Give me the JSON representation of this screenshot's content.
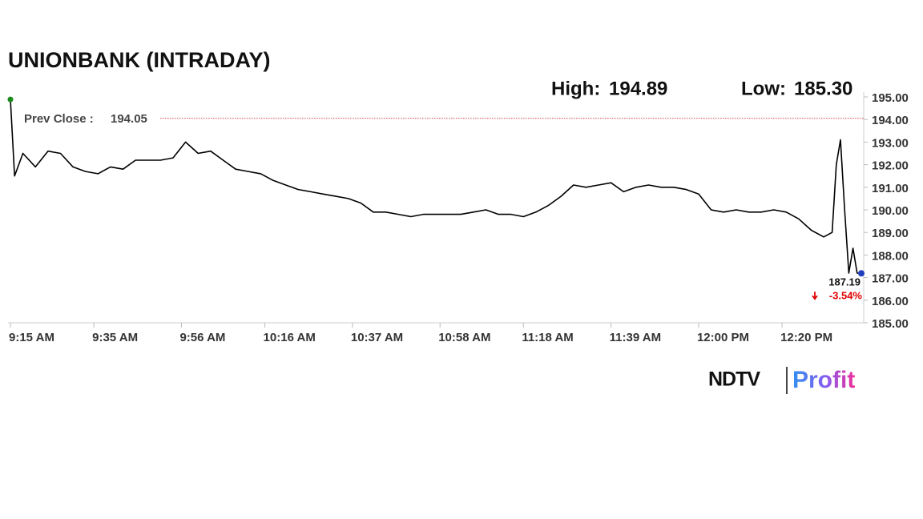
{
  "chart_data": {
    "type": "line",
    "title": "UNIONBANK (INTRADAY)",
    "high_label": "High:",
    "high": 194.89,
    "low_label": "Low:",
    "low": {
      "value": 185.3,
      "label": "185.30"
    },
    "prev_close_label": "Prev Close :",
    "prev_close": 194.05,
    "prev_close_color": "#d04040",
    "change": {
      "value": -3.54,
      "label": "-3.54%"
    },
    "color": "#000000",
    "start_marker_color": "#1a8a1a",
    "end_marker_color": "#1f3fbf",
    "x": [
      "9:15 AM",
      "9:16 AM",
      "9:18 AM",
      "9:21 AM",
      "9:24 AM",
      "9:27 AM",
      "9:30 AM",
      "9:33 AM",
      "9:36 AM",
      "9:39 AM",
      "9:42 AM",
      "9:45 AM",
      "9:48 AM",
      "9:51 AM",
      "9:54 AM",
      "9:57 AM",
      "10:00 AM",
      "10:03 AM",
      "10:06 AM",
      "10:09 AM",
      "10:12 AM",
      "10:15 AM",
      "10:18 AM",
      "10:21 AM",
      "10:24 AM",
      "10:27 AM",
      "10:30 AM",
      "10:33 AM",
      "10:36 AM",
      "10:39 AM",
      "10:42 AM",
      "10:45 AM",
      "10:48 AM",
      "10:51 AM",
      "10:54 AM",
      "10:57 AM",
      "11:00 AM",
      "11:03 AM",
      "11:06 AM",
      "11:09 AM",
      "11:12 AM",
      "11:15 AM",
      "11:18 AM",
      "11:21 AM",
      "11:24 AM",
      "11:27 AM",
      "11:30 AM",
      "11:33 AM",
      "11:36 AM",
      "11:39 AM",
      "11:42 AM",
      "11:45 AM",
      "11:48 AM",
      "11:51 AM",
      "11:54 AM",
      "11:57 AM",
      "12:00 PM",
      "12:03 PM",
      "12:06 PM",
      "12:09 PM",
      "12:12 PM",
      "12:15 PM",
      "12:18 PM",
      "12:21 PM",
      "12:24 PM",
      "12:27 PM",
      "12:30 PM",
      "12:32 PM",
      "12:33 PM",
      "12:34 PM",
      "12:35 PM",
      "12:36 PM",
      "12:37 PM",
      "12:38 PM",
      "12:39 PM"
    ],
    "values": [
      194.89,
      191.5,
      192.5,
      191.9,
      192.6,
      192.5,
      191.9,
      191.7,
      191.6,
      191.9,
      191.8,
      192.2,
      192.2,
      192.2,
      192.3,
      193.0,
      192.5,
      192.6,
      192.2,
      191.8,
      191.7,
      191.6,
      191.3,
      191.1,
      190.9,
      190.8,
      190.7,
      190.6,
      190.5,
      190.3,
      189.9,
      189.9,
      189.8,
      189.7,
      189.8,
      189.8,
      189.8,
      189.8,
      189.9,
      190.0,
      189.8,
      189.8,
      189.7,
      189.9,
      190.2,
      190.6,
      191.1,
      191.0,
      191.1,
      191.2,
      190.8,
      191.0,
      191.1,
      191.0,
      191.0,
      190.9,
      190.7,
      190.0,
      189.9,
      190.0,
      189.9,
      189.9,
      190.0,
      189.9,
      189.6,
      189.1,
      188.8,
      189.0,
      192.0,
      193.1,
      190.0,
      187.2,
      188.3,
      187.2,
      187.19
    ],
    "xlim": [
      "9:15 AM",
      "12:39 PM"
    ],
    "xticks": [
      "9:15 AM",
      "9:35 AM",
      "9:56 AM",
      "10:16 AM",
      "10:37 AM",
      "10:58 AM",
      "11:18 AM",
      "11:39 AM",
      "12:00 PM",
      "12:20 PM"
    ],
    "ylim": [
      185,
      195
    ],
    "yticks": [
      {
        "value": 185,
        "label": "185.00"
      },
      {
        "value": 186,
        "label": "186.00"
      },
      {
        "value": 187,
        "label": "187.00"
      },
      {
        "value": 188,
        "label": "188.00"
      },
      {
        "value": 189,
        "label": "189.00"
      },
      {
        "value": 190,
        "label": "190.00"
      },
      {
        "value": 191,
        "label": "191.00"
      },
      {
        "value": 192,
        "label": "192.00"
      },
      {
        "value": 193,
        "label": "193.00"
      },
      {
        "value": 194,
        "label": "194.00"
      },
      {
        "value": 195,
        "label": "195.00"
      }
    ],
    "logo": {
      "left": "NDTV",
      "right": "Profit"
    }
  }
}
